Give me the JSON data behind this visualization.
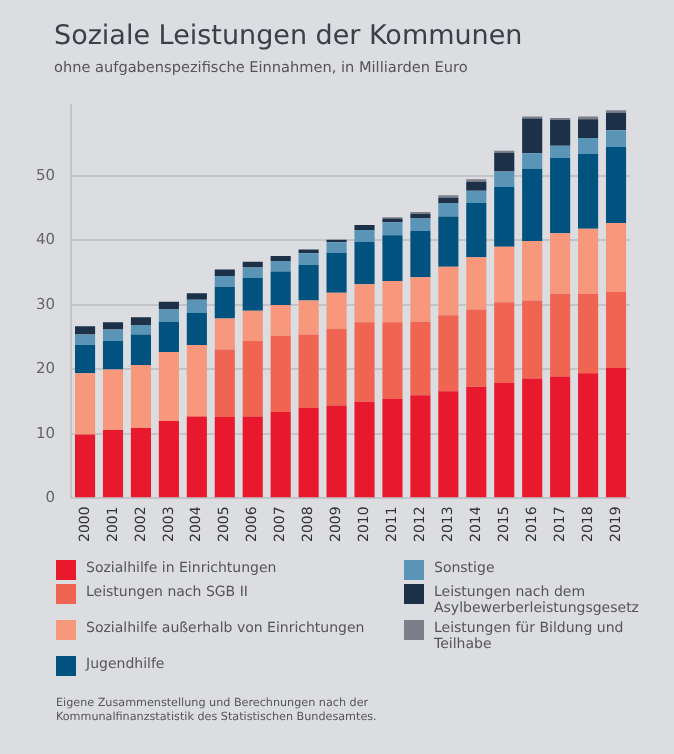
{
  "chart_data": {
    "type": "bar",
    "stacked": true,
    "title": "Soziale Leistungen der Kommunen",
    "subtitle": "ohne aufgabenspezifische Einnahmen, in Milliarden Euro",
    "categories": [
      "2000",
      "2001",
      "2002",
      "2003",
      "2004",
      "2005",
      "2006",
      "2007",
      "2008",
      "2009",
      "2010",
      "2011",
      "2012",
      "2013",
      "2014",
      "2015",
      "2016",
      "2017",
      "2018",
      "2019"
    ],
    "series": [
      {
        "name": "Sozialhilfe in Einrichtungen",
        "color": "#e8192c",
        "values": [
          9.9,
          10.6,
          10.9,
          12.0,
          12.7,
          12.6,
          12.7,
          13.4,
          14.0,
          14.4,
          15.0,
          15.4,
          16.0,
          16.6,
          17.3,
          17.9,
          18.6,
          18.9,
          19.4,
          20.2
        ]
      },
      {
        "name": "Leistungen nach SGB II",
        "color": "#f06552",
        "values": [
          null,
          null,
          null,
          null,
          null,
          10.5,
          11.7,
          11.8,
          11.4,
          11.9,
          12.3,
          11.9,
          11.4,
          11.8,
          12.0,
          12.5,
          12.1,
          12.8,
          12.3,
          11.8
        ]
      },
      {
        "name": "Sozialhilfe außerhalb von Einrichtungen",
        "color": "#f7977c",
        "values": [
          9.5,
          9.4,
          9.8,
          10.7,
          11.1,
          4.8,
          4.7,
          4.8,
          5.3,
          5.6,
          5.9,
          6.4,
          6.9,
          7.5,
          8.1,
          8.6,
          9.2,
          9.4,
          10.1,
          10.7
        ]
      },
      {
        "name": "Jugendhilfe",
        "color": "#01527f",
        "values": [
          4.4,
          4.4,
          4.7,
          4.7,
          5.0,
          4.9,
          5.1,
          5.2,
          5.5,
          6.2,
          6.6,
          7.1,
          7.2,
          7.8,
          8.4,
          9.3,
          11.2,
          11.7,
          11.6,
          11.8
        ]
      },
      {
        "name": "Sonstige",
        "color": "#5a95b8",
        "values": [
          1.6,
          1.8,
          1.5,
          1.9,
          2.0,
          1.7,
          1.6,
          1.6,
          1.8,
          1.6,
          1.8,
          2.0,
          1.9,
          2.1,
          1.9,
          2.4,
          2.4,
          1.9,
          2.5,
          2.6
        ]
      },
      {
        "name": "Leistungen nach dem Asylbewerberleistungsgesetz",
        "color": "#1c3148",
        "values": [
          1.3,
          1.1,
          1.2,
          1.2,
          1.0,
          1.0,
          0.9,
          0.8,
          0.6,
          0.4,
          0.8,
          0.6,
          0.7,
          0.8,
          1.4,
          2.9,
          5.4,
          4.0,
          2.9,
          2.7
        ]
      },
      {
        "name": "Leistungen für Bildung und Teilhabe",
        "color": "#7a7f8a",
        "values": [
          null,
          null,
          null,
          null,
          null,
          null,
          null,
          null,
          null,
          null,
          null,
          0.2,
          0.3,
          0.4,
          0.4,
          0.3,
          0.3,
          0.3,
          0.4,
          0.4
        ]
      }
    ],
    "ylim": [
      0,
      61
    ],
    "yticks": [
      0,
      10,
      20,
      30,
      40,
      50
    ],
    "grid": "y",
    "legend": "bottom",
    "annotations": [
      "Eigene Zusammenstellung und Berechnungen nach der Kommunalfinanzstatistik des Statistischen Bundesamtes."
    ]
  }
}
